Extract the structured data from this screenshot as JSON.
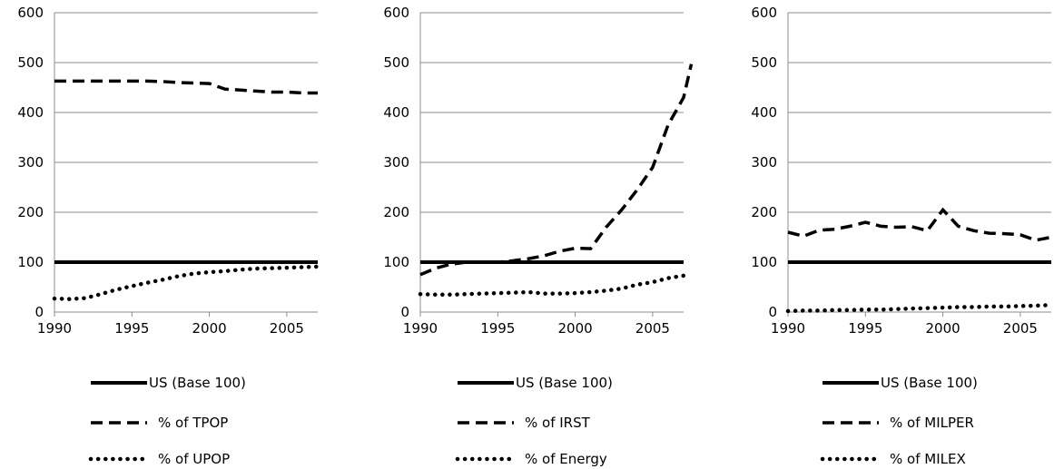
{
  "chart_data": [
    {
      "type": "line",
      "title": "",
      "xlabel": "",
      "ylabel": "",
      "ylim": [
        0,
        600
      ],
      "xlim": [
        1990,
        2007
      ],
      "yticks": [
        0,
        100,
        200,
        300,
        400,
        500,
        600
      ],
      "xticks": [
        1990,
        1995,
        2000,
        2005
      ],
      "grid": "horizontal",
      "legend_position": "bottom",
      "series": [
        {
          "name": "US (Base 100)",
          "style": "solid",
          "points": [
            [
              1990,
              100
            ],
            [
              2007,
              100
            ]
          ]
        },
        {
          "name": "% of TPOP",
          "style": "dashed",
          "points": [
            [
              1990,
              463
            ],
            [
              1991,
              463
            ],
            [
              1992,
              463
            ],
            [
              1993,
              463
            ],
            [
              1994,
              463
            ],
            [
              1995,
              463
            ],
            [
              1996,
              463
            ],
            [
              1997,
              462
            ],
            [
              1998,
              460
            ],
            [
              1999,
              459
            ],
            [
              2000,
              458
            ],
            [
              2001,
              447
            ],
            [
              2002,
              445
            ],
            [
              2003,
              443
            ],
            [
              2004,
              441
            ],
            [
              2005,
              441
            ],
            [
              2006,
              439
            ],
            [
              2007,
              439
            ]
          ]
        },
        {
          "name": "% of UPOP",
          "style": "dotted",
          "points": [
            [
              1990,
              27
            ],
            [
              1991,
              26
            ],
            [
              1992,
              28
            ],
            [
              1993,
              36
            ],
            [
              1994,
              45
            ],
            [
              1995,
              52
            ],
            [
              1996,
              59
            ],
            [
              1997,
              65
            ],
            [
              1998,
              72
            ],
            [
              1999,
              77
            ],
            [
              2000,
              80
            ],
            [
              2001,
              82
            ],
            [
              2002,
              85
            ],
            [
              2003,
              87
            ],
            [
              2004,
              88
            ],
            [
              2005,
              89
            ],
            [
              2006,
              90
            ],
            [
              2007,
              91
            ]
          ]
        }
      ]
    },
    {
      "type": "line",
      "title": "",
      "xlabel": "",
      "ylabel": "",
      "ylim": [
        0,
        600
      ],
      "xlim": [
        1990,
        2007
      ],
      "yticks": [
        0,
        100,
        200,
        300,
        400,
        500,
        600
      ],
      "xticks": [
        1990,
        1995,
        2000,
        2005
      ],
      "grid": "horizontal",
      "legend_position": "bottom",
      "series": [
        {
          "name": "US (Base 100)",
          "style": "solid",
          "points": [
            [
              1990,
              100
            ],
            [
              2007,
              100
            ]
          ]
        },
        {
          "name": "% of IRST",
          "style": "dashed",
          "points": [
            [
              1990,
              75
            ],
            [
              1991,
              88
            ],
            [
              1992,
              96
            ],
            [
              1993,
              100
            ],
            [
              1994,
              100
            ],
            [
              1995,
              100
            ],
            [
              1996,
              103
            ],
            [
              1997,
              107
            ],
            [
              1998,
              113
            ],
            [
              1999,
              122
            ],
            [
              2000,
              128
            ],
            [
              2001,
              127
            ],
            [
              2002,
              170
            ],
            [
              2003,
              205
            ],
            [
              2004,
              245
            ],
            [
              2005,
              290
            ],
            [
              2006,
              375
            ],
            [
              2007,
              430
            ],
            [
              2007.5,
              497
            ]
          ]
        },
        {
          "name": "% of Energy",
          "style": "dotted",
          "points": [
            [
              1990,
              36
            ],
            [
              1991,
              35
            ],
            [
              1992,
              35
            ],
            [
              1993,
              36
            ],
            [
              1994,
              37
            ],
            [
              1995,
              38
            ],
            [
              1996,
              39
            ],
            [
              1997,
              40
            ],
            [
              1998,
              37
            ],
            [
              1999,
              37
            ],
            [
              2000,
              38
            ],
            [
              2001,
              40
            ],
            [
              2002,
              43
            ],
            [
              2003,
              47
            ],
            [
              2004,
              55
            ],
            [
              2005,
              60
            ],
            [
              2006,
              68
            ],
            [
              2007,
              73
            ]
          ]
        }
      ]
    },
    {
      "type": "line",
      "title": "",
      "xlabel": "",
      "ylabel": "",
      "ylim": [
        0,
        600
      ],
      "xlim": [
        1990,
        2007
      ],
      "yticks": [
        0,
        100,
        200,
        300,
        400,
        500,
        600
      ],
      "xticks": [
        1990,
        1995,
        2000,
        2005
      ],
      "grid": "horizontal",
      "legend_position": "bottom",
      "series": [
        {
          "name": "US (Base 100)",
          "style": "solid",
          "points": [
            [
              1990,
              100
            ],
            [
              2007,
              100
            ]
          ]
        },
        {
          "name": "% of MILPER",
          "style": "dashed",
          "points": [
            [
              1990,
              160
            ],
            [
              1991,
              152
            ],
            [
              1992,
              164
            ],
            [
              1993,
              166
            ],
            [
              1994,
              172
            ],
            [
              1995,
              180
            ],
            [
              1996,
              172
            ],
            [
              1997,
              170
            ],
            [
              1998,
              171
            ],
            [
              1999,
              163
            ],
            [
              2000,
              205
            ],
            [
              2001,
              172
            ],
            [
              2002,
              163
            ],
            [
              2003,
              158
            ],
            [
              2004,
              157
            ],
            [
              2005,
              155
            ],
            [
              2006,
              144
            ],
            [
              2007,
              150
            ]
          ]
        },
        {
          "name": "% of MILEX",
          "style": "dotted",
          "points": [
            [
              1990,
              2
            ],
            [
              1991,
              3
            ],
            [
              1992,
              3
            ],
            [
              1993,
              4
            ],
            [
              1994,
              4
            ],
            [
              1995,
              5
            ],
            [
              1996,
              5
            ],
            [
              1997,
              6
            ],
            [
              1998,
              7
            ],
            [
              1999,
              8
            ],
            [
              2000,
              9
            ],
            [
              2001,
              10
            ],
            [
              2002,
              10
            ],
            [
              2003,
              11
            ],
            [
              2004,
              11
            ],
            [
              2005,
              12
            ],
            [
              2006,
              13
            ],
            [
              2007,
              14
            ]
          ]
        }
      ]
    }
  ]
}
